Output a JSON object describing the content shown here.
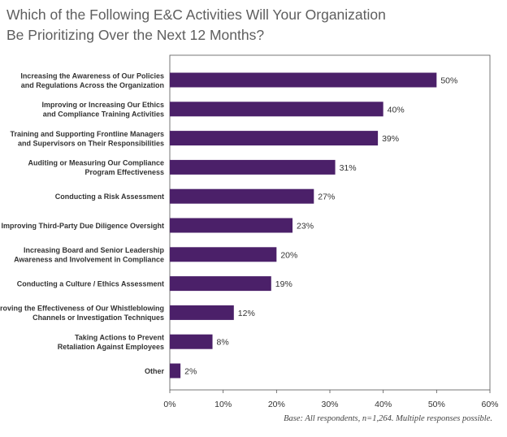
{
  "title_lines": [
    "Which of the Following E&C Activities Will Your Organization",
    "Be Prioritizing Over the Next 12 Months?"
  ],
  "footnote": "Base: All respondents, n=1,264. Multiple responses possible.",
  "colors": {
    "bar": "#4b2069",
    "axis": "#555555",
    "text": "#333333"
  },
  "chart_data": {
    "type": "bar",
    "orientation": "horizontal",
    "categories": [
      [
        "Increasing the Awareness of Our Policies",
        "and Regulations Across the Organization"
      ],
      [
        "Improving or Increasing Our Ethics",
        "and Compliance Training Activities"
      ],
      [
        "Training and Supporting Frontline Managers",
        "and Supervisors on Their Responsibilities"
      ],
      [
        "Auditing or Measuring Our Compliance",
        "Program Effectiveness"
      ],
      [
        "Conducting a Risk Assessment"
      ],
      [
        "Improving Third-Party Due Diligence Oversight"
      ],
      [
        "Increasing Board and Senior Leadership",
        "Awareness and Involvement in Compliance"
      ],
      [
        "Conducting a Culture / Ethics Assessment"
      ],
      [
        "Improving the Effectiveness of Our Whistleblowing",
        "Channels or Investigation Techniques"
      ],
      [
        "Taking Actions to Prevent",
        "Retaliation Against Employees"
      ],
      [
        "Other"
      ]
    ],
    "values": [
      50,
      40,
      39,
      31,
      27,
      23,
      20,
      19,
      12,
      8,
      2
    ],
    "value_labels": [
      "50%",
      "40%",
      "39%",
      "31%",
      "27%",
      "23%",
      "20%",
      "19%",
      "12%",
      "8%",
      "2%"
    ],
    "xlim": [
      0,
      60
    ],
    "xticks": [
      0,
      10,
      20,
      30,
      40,
      50,
      60
    ],
    "xtick_labels": [
      "0%",
      "10%",
      "20%",
      "30%",
      "40%",
      "50%",
      "60%"
    ],
    "grid": false
  }
}
